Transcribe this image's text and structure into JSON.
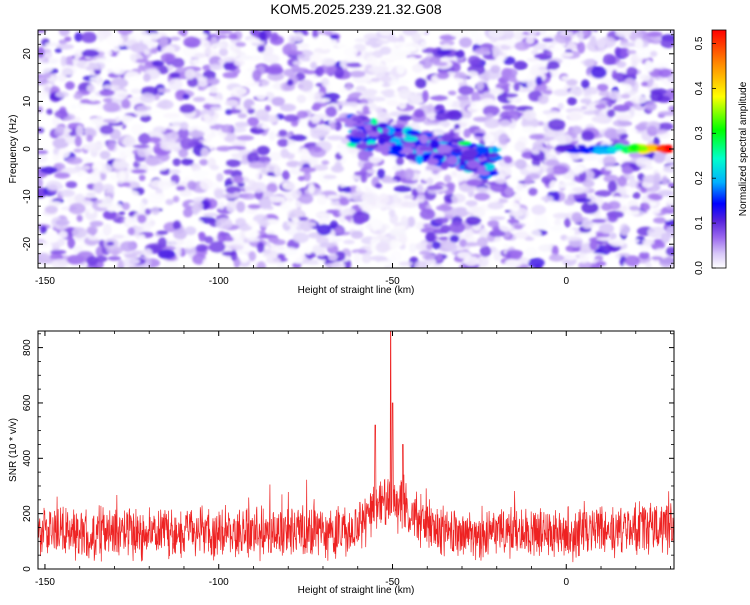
{
  "title": "KOM5.2025.239.21.32.G08",
  "colors": {
    "snr_line": "#ee2222",
    "colormap": [
      "#ffffff",
      "#d8c8f8",
      "#9966ee",
      "#5522dd",
      "#0000ff",
      "#00b0ff",
      "#00ffcc",
      "#00ff00",
      "#ffff00",
      "#ff8800",
      "#ff0000"
    ]
  },
  "chart_data": [
    {
      "type": "heatmap",
      "name": "spectrogram",
      "xlabel": "Height of straight line (km)",
      "ylabel": "Frequency (Hz)",
      "xlim": [
        -152,
        31
      ],
      "ylim": [
        -25,
        25
      ],
      "xticks": [
        -150,
        -100,
        -50,
        0
      ],
      "xtick_labels": [
        "-150",
        "-100",
        "-50",
        "0"
      ],
      "yticks": [
        -20,
        -10,
        0,
        10,
        20
      ],
      "ytick_labels": [
        "-20",
        "-10",
        "0",
        "10",
        "20"
      ],
      "colorbar": {
        "label": "Normalized spectral amplitude",
        "range": [
          0.0,
          0.53
        ],
        "ticks": [
          0.0,
          0.1,
          0.2,
          0.3,
          0.4,
          0.5
        ],
        "tick_labels": [
          "0.0",
          "0.1",
          "0.2",
          "0.3",
          "0.4",
          "0.5"
        ]
      },
      "features": [
        {
          "kind": "source_cluster",
          "x": [
            -62,
            -20
          ],
          "freq": [
            -6,
            8
          ],
          "amplitude": 0.2
        },
        {
          "kind": "tonal_line",
          "x": [
            -3,
            30
          ],
          "freq": [
            -1,
            1
          ],
          "amplitude": 0.45
        },
        {
          "kind": "quiet_zone",
          "x": [
            -60,
            -45
          ],
          "freq": [
            10,
            25
          ]
        },
        {
          "kind": "quiet_zone",
          "x": [
            -58,
            -45
          ],
          "freq": [
            -25,
            -10
          ]
        }
      ],
      "background_amplitude": [
        0.0,
        0.1
      ]
    },
    {
      "type": "line",
      "name": "snr",
      "xlabel": "Height of straight line (km)",
      "ylabel": "SNR (10 * v/v)",
      "xlim": [
        -152,
        31
      ],
      "ylim": [
        0,
        860
      ],
      "xticks": [
        -150,
        -100,
        -50,
        0
      ],
      "xtick_labels": [
        "-150",
        "-100",
        "-50",
        "0"
      ],
      "yticks": [
        0,
        200,
        400,
        600,
        800
      ],
      "ytick_labels": [
        "0",
        "200",
        "400",
        "600",
        "800"
      ],
      "series": [
        {
          "name": "SNR",
          "x_range": [
            -152,
            31
          ],
          "baseline": 130,
          "typical_range": [
            40,
            300
          ],
          "peak": {
            "x": -50.5,
            "y": 860
          },
          "secondary_peaks": [
            {
              "x": -55,
              "y": 520
            },
            {
              "x": -50,
              "y": 600
            },
            {
              "x": -47,
              "y": 450
            }
          ]
        }
      ]
    }
  ]
}
